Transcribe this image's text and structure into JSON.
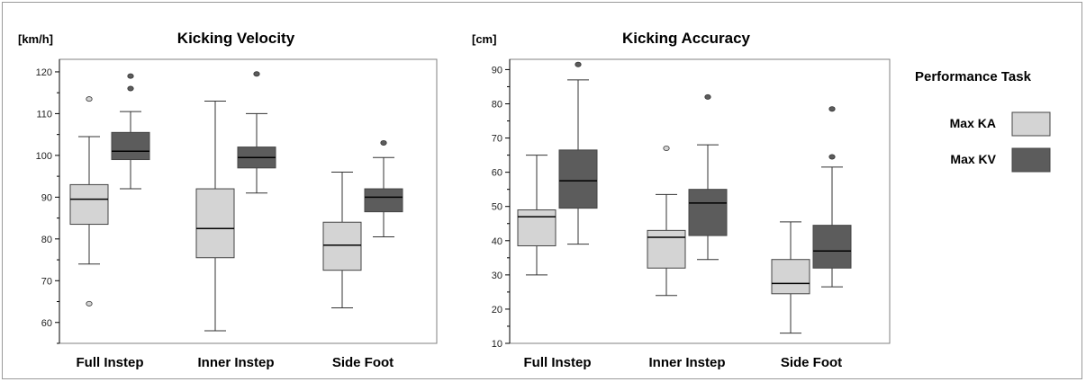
{
  "legend": {
    "title": "Performance Task",
    "items": [
      {
        "label": "Max KA",
        "color": "#d4d4d4"
      },
      {
        "label": "Max KV",
        "color": "#5c5c5c"
      }
    ]
  },
  "chart_data": [
    {
      "type": "box",
      "title": "Kicking Velocity",
      "ylabel": "[km/h]",
      "ylim": [
        55,
        123
      ],
      "yticks": [
        60,
        70,
        80,
        90,
        100,
        110,
        120
      ],
      "categories": [
        "Full Instep",
        "Inner Instep",
        "Side Foot"
      ],
      "series": [
        {
          "name": "Max KA",
          "color": "#d4d4d4",
          "boxes": [
            {
              "whisker_low": 74,
              "q1": 83.5,
              "median": 89.5,
              "q3": 93,
              "whisker_high": 104.5,
              "outliers": [
                113.5,
                64.5
              ]
            },
            {
              "whisker_low": 58,
              "q1": 75.5,
              "median": 82.5,
              "q3": 92,
              "whisker_high": 113,
              "outliers": []
            },
            {
              "whisker_low": 63.5,
              "q1": 72.5,
              "median": 78.5,
              "q3": 84,
              "whisker_high": 96,
              "outliers": []
            }
          ]
        },
        {
          "name": "Max KV",
          "color": "#5c5c5c",
          "boxes": [
            {
              "whisker_low": 92,
              "q1": 99,
              "median": 101,
              "q3": 105.5,
              "whisker_high": 110.5,
              "outliers": [
                119,
                116
              ]
            },
            {
              "whisker_low": 91,
              "q1": 97,
              "median": 99.5,
              "q3": 102,
              "whisker_high": 110,
              "outliers": [
                119.5
              ]
            },
            {
              "whisker_low": 80.5,
              "q1": 86.5,
              "median": 90,
              "q3": 92,
              "whisker_high": 99.5,
              "outliers": [
                103
              ]
            }
          ]
        }
      ]
    },
    {
      "type": "box",
      "title": "Kicking Accuracy",
      "ylabel": "[cm]",
      "ylim": [
        10,
        93
      ],
      "yticks": [
        10,
        20,
        30,
        40,
        50,
        60,
        70,
        80,
        90
      ],
      "categories": [
        "Full Instep",
        "Inner Instep",
        "Side Foot"
      ],
      "series": [
        {
          "name": "Max KA",
          "color": "#d4d4d4",
          "boxes": [
            {
              "whisker_low": 30,
              "q1": 38.5,
              "median": 47,
              "q3": 49,
              "whisker_high": 65,
              "outliers": []
            },
            {
              "whisker_low": 24,
              "q1": 32,
              "median": 41,
              "q3": 43,
              "whisker_high": 53.5,
              "outliers": [
                67
              ]
            },
            {
              "whisker_low": 13,
              "q1": 24.5,
              "median": 27.5,
              "q3": 34.5,
              "whisker_high": 45.5,
              "outliers": []
            }
          ]
        },
        {
          "name": "Max KV",
          "color": "#5c5c5c",
          "boxes": [
            {
              "whisker_low": 39,
              "q1": 49.5,
              "median": 57.5,
              "q3": 66.5,
              "whisker_high": 87,
              "outliers": [
                91.5
              ]
            },
            {
              "whisker_low": 34.5,
              "q1": 41.5,
              "median": 51,
              "q3": 55,
              "whisker_high": 68,
              "outliers": [
                82
              ]
            },
            {
              "whisker_low": 26.5,
              "q1": 32,
              "median": 37,
              "q3": 44.5,
              "whisker_high": 61.5,
              "outliers": [
                78.5,
                64.5
              ]
            }
          ]
        }
      ]
    }
  ]
}
